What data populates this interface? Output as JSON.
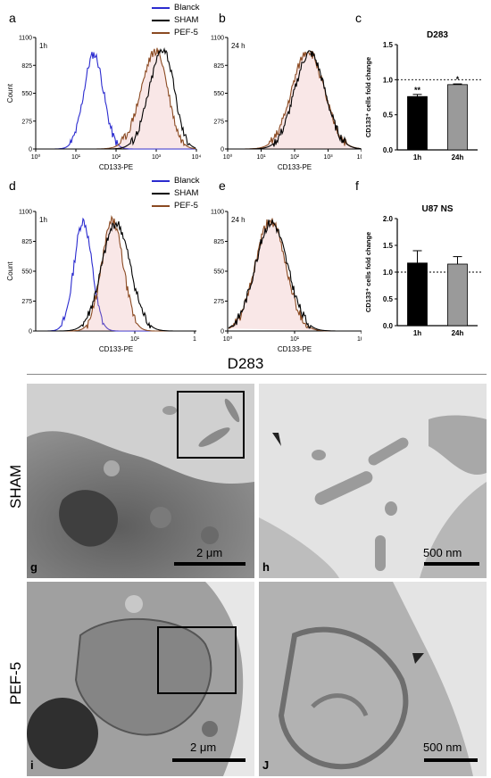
{
  "panel_letters": {
    "a": "a",
    "b": "b",
    "c": "c",
    "d": "d",
    "e": "e",
    "f": "f",
    "g": "g",
    "h": "h",
    "i": "i",
    "j": "J"
  },
  "legend": {
    "blanck": "Blanck",
    "sham": "SHAM",
    "pef5": "PEF-5",
    "colors": {
      "blanck": "#2b2bcf",
      "sham": "#000000",
      "pef5": "#8b4a22"
    }
  },
  "flow": {
    "a": {
      "time": "1h",
      "xlabel": "CD133-PE",
      "ylabel": "Count",
      "yticks": [
        "0",
        "275",
        "550",
        "825",
        "1100"
      ],
      "xticks": [
        "10⁰",
        "10¹",
        "10²",
        "10³",
        "10⁴"
      ]
    },
    "b": {
      "time": "24 h",
      "xlabel": "CD133-PE",
      "yticks": [
        "0",
        "275",
        "550",
        "825",
        "1100"
      ],
      "xticks": [
        "10⁰",
        "10¹",
        "10²",
        "10³",
        "10⁴"
      ]
    },
    "d": {
      "time": "1h",
      "xlabel": "CD133-PE",
      "ylabel": "Count",
      "yticks": [
        "0",
        "275",
        "550",
        "825",
        "1100"
      ],
      "xticks": [
        "10¹",
        "1"
      ]
    },
    "e": {
      "time": "24 h",
      "xlabel": "CD133-PE",
      "yticks": [
        "0",
        "275",
        "550",
        "825",
        "1100"
      ],
      "xticks": [
        "10⁰",
        "10¹",
        "10²"
      ]
    }
  },
  "chart_data": [
    {
      "type": "bar",
      "title": "D283",
      "categories": [
        "1h",
        "24h"
      ],
      "values": [
        0.76,
        0.93
      ],
      "errors": [
        0.03,
        0.01
      ],
      "ylim": [
        0,
        1.5
      ],
      "yticks": [
        "0.0",
        "0.5",
        "1.0",
        "1.5"
      ],
      "ylabel": "CD133⁺ cells fold change",
      "reference_line": 1.0,
      "annotations": [
        "**",
        "*"
      ],
      "colors": [
        "#000000",
        "#9a9a9a"
      ]
    },
    {
      "type": "bar",
      "title": "U87 NS",
      "categories": [
        "1h",
        "24h"
      ],
      "values": [
        1.17,
        1.15
      ],
      "errors": [
        0.23,
        0.14
      ],
      "ylim": [
        0,
        2.0
      ],
      "yticks": [
        "0.0",
        "0.5",
        "1.0",
        "1.5",
        "2.0"
      ],
      "ylabel": "CD133⁺ cells fold change",
      "reference_line": 1.0,
      "colors": [
        "#000000",
        "#9a9a9a"
      ]
    }
  ],
  "em": {
    "header": "D283",
    "rows": [
      "SHAM",
      "PEF-5"
    ],
    "scale_2um": "2 μm",
    "scale_500nm": "500 nm"
  }
}
